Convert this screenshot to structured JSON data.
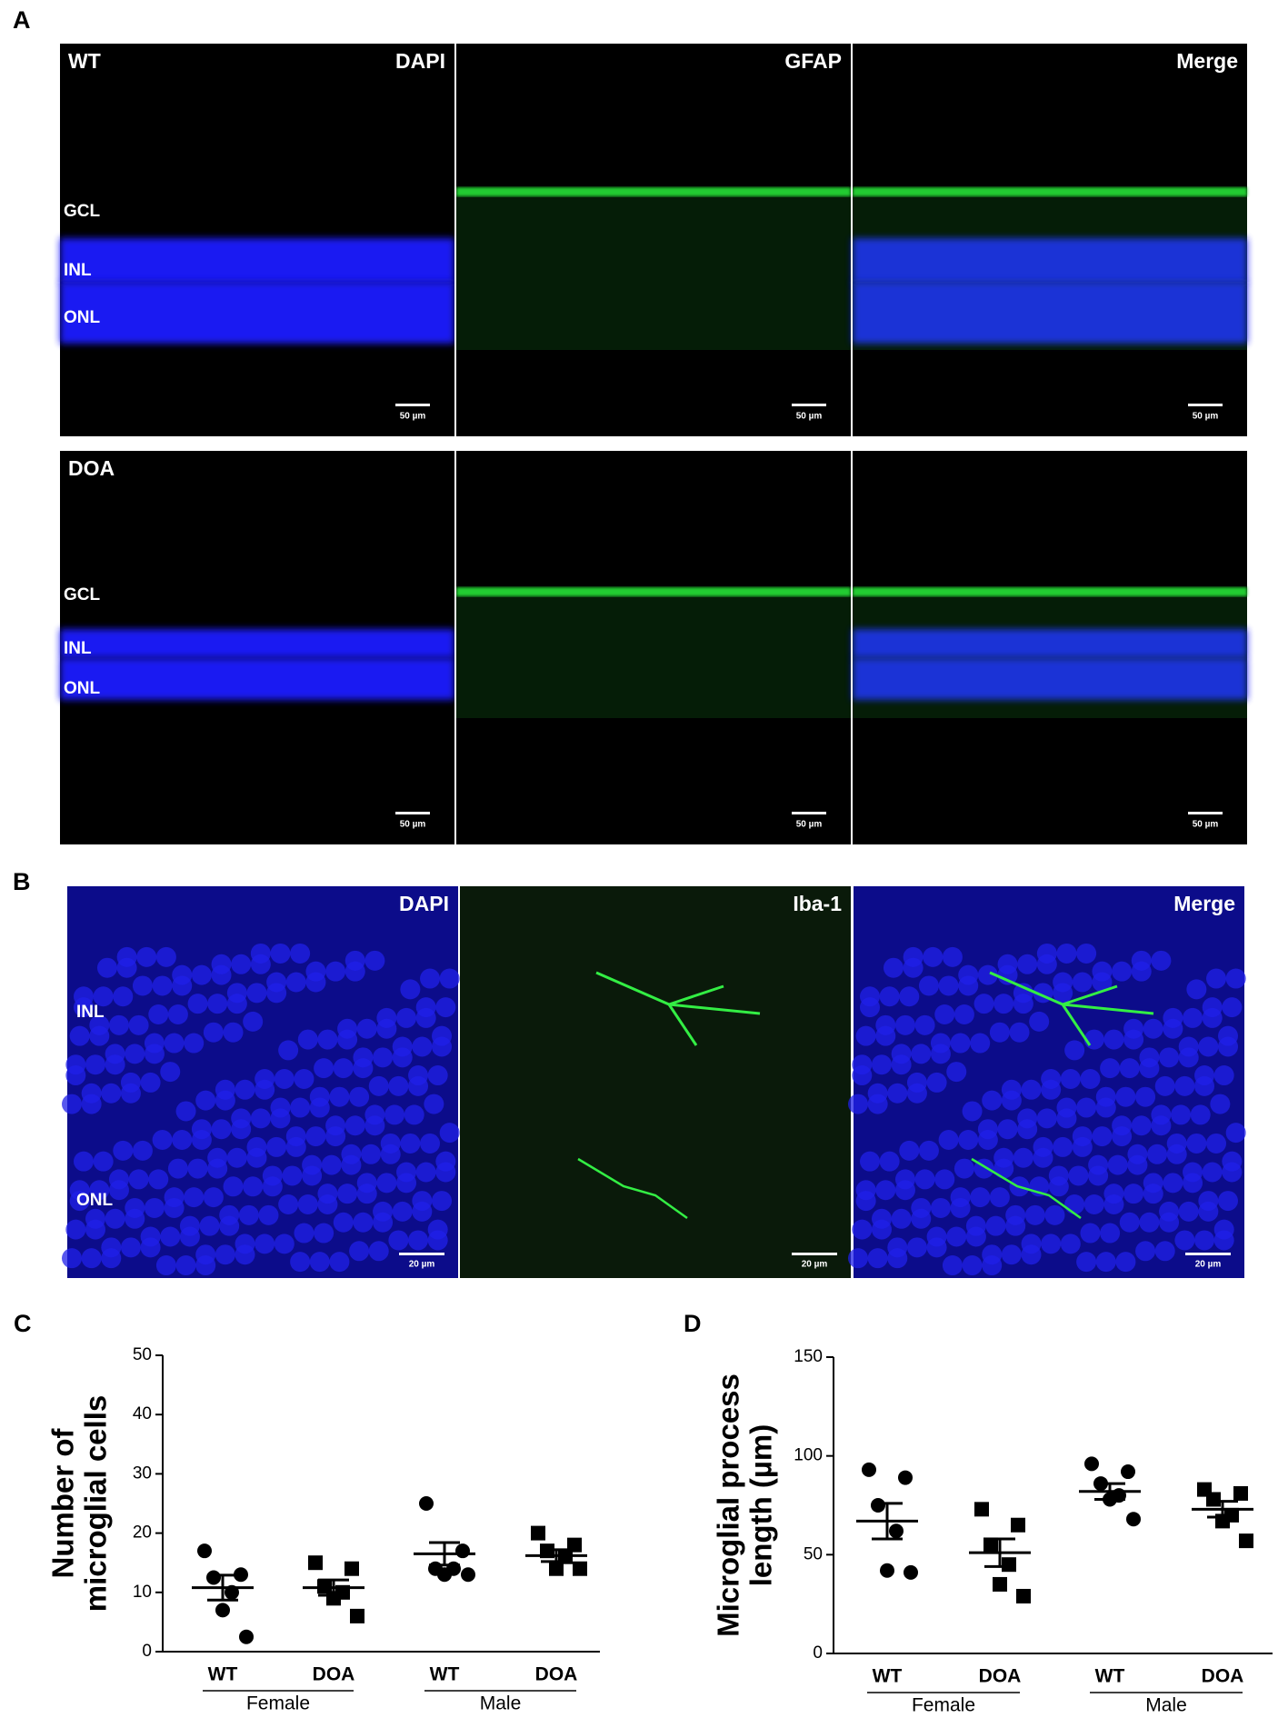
{
  "panel_a": {
    "label": "A",
    "rows": [
      {
        "group": "WT",
        "channels": [
          "DAPI",
          "GFAP",
          "Merge"
        ],
        "layers": [
          "GCL",
          "INL",
          "ONL"
        ],
        "scale_bar": "50 µm"
      },
      {
        "group": "DOA",
        "layers": [
          "GCL",
          "INL",
          "ONL"
        ],
        "scale_bar": "50 µm"
      }
    ]
  },
  "panel_b": {
    "label": "B",
    "channels": [
      "DAPI",
      "Iba-1",
      "Merge"
    ],
    "layers": [
      "INL",
      "ONL"
    ],
    "scale_bar": "20 µm"
  },
  "chart_data": [
    {
      "type": "dotplot",
      "label": "C",
      "ylabel": [
        "Number of",
        "microglial cells"
      ],
      "categories": [
        "WT",
        "DOA",
        "WT",
        "DOA"
      ],
      "groups": [
        "Female",
        "Male"
      ],
      "markers": [
        "circle",
        "square",
        "circle",
        "square"
      ],
      "color": "#000000",
      "points": [
        [
          17,
          13,
          12.5,
          10,
          7,
          2.5
        ],
        [
          15,
          14,
          11,
          10,
          9,
          6
        ],
        [
          25,
          17,
          14,
          14,
          13,
          13
        ],
        [
          20,
          18,
          17,
          16,
          14,
          14
        ]
      ],
      "means": [
        10.8,
        10.8,
        16.5,
        16.2
      ],
      "sems": [
        2.1,
        1.3,
        1.9,
        1.0
      ],
      "ylim": [
        0,
        50
      ],
      "yticks": [
        0,
        10,
        20,
        30,
        40,
        50
      ]
    },
    {
      "type": "dotplot",
      "label": "D",
      "ylabel": [
        "Microglial process",
        "length (µm)"
      ],
      "categories": [
        "WT",
        "DOA",
        "WT",
        "DOA"
      ],
      "groups": [
        "Female",
        "Male"
      ],
      "markers": [
        "circle",
        "square",
        "circle",
        "square"
      ],
      "color": "#000000",
      "points": [
        [
          93,
          89,
          75,
          62,
          42,
          41
        ],
        [
          73,
          65,
          55,
          45,
          35,
          29
        ],
        [
          96,
          92,
          86,
          80,
          78,
          68
        ],
        [
          83,
          81,
          78,
          70,
          67,
          57
        ]
      ],
      "means": [
        67,
        51,
        82,
        73
      ],
      "sems": [
        9,
        7,
        4,
        4
      ],
      "ylim": [
        0,
        150
      ],
      "yticks": [
        0,
        50,
        100,
        150
      ]
    }
  ]
}
